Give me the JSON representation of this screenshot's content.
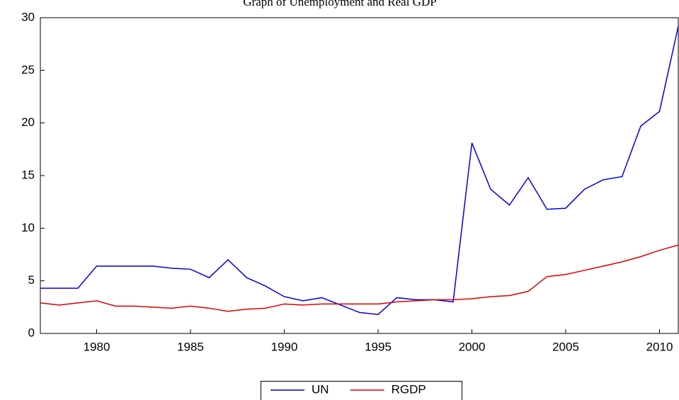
{
  "chart_data": {
    "type": "line",
    "title": "Graph of Unemployment and Real GDP",
    "x": [
      1977,
      1978,
      1979,
      1980,
      1981,
      1982,
      1983,
      1984,
      1985,
      1986,
      1987,
      1988,
      1989,
      1990,
      1991,
      1992,
      1993,
      1994,
      1995,
      1996,
      1997,
      1998,
      1999,
      2000,
      2001,
      2002,
      2003,
      2004,
      2005,
      2006,
      2007,
      2008,
      2009,
      2010,
      2011
    ],
    "series": [
      {
        "name": "UN",
        "color": "#0000dd",
        "values": [
          4.3,
          4.3,
          4.3,
          6.4,
          6.4,
          6.4,
          6.4,
          6.2,
          6.1,
          5.3,
          7.0,
          5.3,
          4.5,
          3.5,
          3.1,
          3.4,
          2.7,
          2.0,
          1.8,
          3.4,
          3.2,
          3.2,
          3.0,
          18.1,
          13.7,
          12.2,
          14.8,
          11.8,
          11.9,
          13.7,
          14.6,
          14.9,
          19.7,
          21.1,
          29.2
        ]
      },
      {
        "name": "RGDP",
        "color": "#dd0000",
        "values": [
          2.9,
          2.7,
          2.9,
          3.1,
          2.6,
          2.6,
          2.5,
          2.4,
          2.6,
          2.4,
          2.1,
          2.3,
          2.4,
          2.8,
          2.7,
          2.8,
          2.8,
          2.8,
          2.8,
          3.0,
          3.1,
          3.2,
          3.2,
          3.3,
          3.5,
          3.6,
          4.0,
          5.4,
          5.6,
          6.0,
          6.4,
          6.8,
          7.3,
          7.9,
          8.4
        ]
      }
    ],
    "xlim": [
      1977,
      2011
    ],
    "xticks": [
      1980,
      1985,
      1990,
      1995,
      2000,
      2005,
      2010
    ],
    "ylim": [
      0,
      30
    ],
    "yticks": [
      0,
      5,
      10,
      15,
      20,
      25,
      30
    ]
  }
}
